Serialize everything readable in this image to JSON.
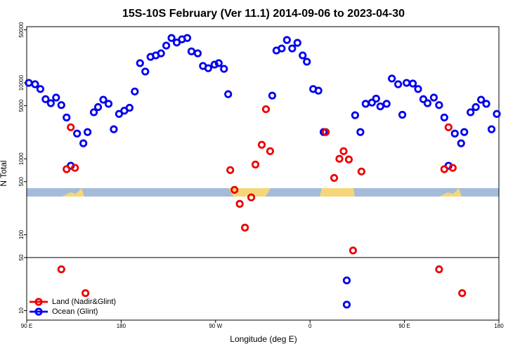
{
  "chart_data": {
    "type": "scatter",
    "title": "15S-10S February (Ver 11.1)   2014-09-06 to 2023-04-30",
    "xlabel": "Longitude (deg E)",
    "ylabel": "N Total",
    "yscale": "log",
    "xlim": [
      90,
      540
    ],
    "ylim": [
      7.5,
      55000
    ],
    "xticks": [
      {
        "value": 90,
        "label": "90 E"
      },
      180,
      {
        "value": 270,
        "label": "90 W"
      },
      {
        "value": 360,
        "label": "0"
      },
      {
        "value": 450,
        "label": "90 E"
      },
      {
        "value": 540,
        "label": "180"
      }
    ],
    "yticks": [
      10,
      50,
      100,
      500,
      1000,
      5000,
      10000,
      50000
    ],
    "hline": 50,
    "grid": false,
    "legend": "bottom left",
    "series": [
      {
        "name": "Ocean (Glint)",
        "color": "#0000ee",
        "x": [
          92,
          98,
          103,
          108,
          113,
          118,
          123,
          128,
          132,
          138,
          144,
          148,
          154,
          158,
          163,
          168,
          173,
          178,
          183,
          188,
          193,
          198,
          203,
          208,
          213,
          218,
          223,
          228,
          233,
          238,
          243,
          247,
          253,
          258,
          263,
          269,
          273,
          278,
          282,
          324,
          328,
          333,
          338,
          343,
          348,
          353,
          357,
          363,
          368,
          373,
          395,
          395,
          403,
          408,
          413,
          419,
          423,
          427,
          433,
          438,
          444,
          448,
          452,
          458,
          463,
          468,
          472,
          478,
          483,
          488,
          492,
          498,
          504,
          507,
          513,
          518,
          523,
          528,
          533,
          538
        ],
        "values": [
          10000,
          9600,
          8300,
          6100,
          5400,
          6400,
          5100,
          3500,
          810,
          2150,
          1600,
          2250,
          4100,
          4800,
          6000,
          5300,
          2450,
          3900,
          4300,
          4700,
          7700,
          18200,
          14100,
          22000,
          23000,
          24500,
          31000,
          39000,
          34000,
          37500,
          39000,
          26000,
          24500,
          16700,
          15600,
          17400,
          18200,
          15300,
          7100,
          6800,
          26700,
          28400,
          36700,
          28400,
          33700,
          23000,
          19000,
          8300,
          7900,
          2250,
          25,
          12,
          3750,
          2250,
          5300,
          5500,
          6200,
          4900,
          5300,
          11400,
          9600,
          3800,
          10000,
          9800,
          8300,
          6100,
          5400,
          6400,
          5100,
          3500,
          810,
          2150,
          1600,
          2250,
          4100,
          4800,
          6000,
          5300,
          2450,
          3900
        ]
      },
      {
        "name": "Land (Nadir&Glint)",
        "color": "#ee0000",
        "x": [
          128,
          132,
          136,
          123,
          146,
          284,
          288,
          293,
          298,
          304,
          308,
          314,
          318,
          322,
          375,
          383,
          388,
          392,
          397,
          401,
          409,
          483,
          488,
          492,
          496,
          505
        ],
        "values": [
          730,
          2600,
          760,
          35,
          17,
          710,
          390,
          255,
          124,
          310,
          840,
          1530,
          4500,
          1260,
          2250,
          560,
          1000,
          1260,
          980,
          62,
          680,
          35,
          730,
          2600,
          760,
          17
        ]
      }
    ]
  }
}
